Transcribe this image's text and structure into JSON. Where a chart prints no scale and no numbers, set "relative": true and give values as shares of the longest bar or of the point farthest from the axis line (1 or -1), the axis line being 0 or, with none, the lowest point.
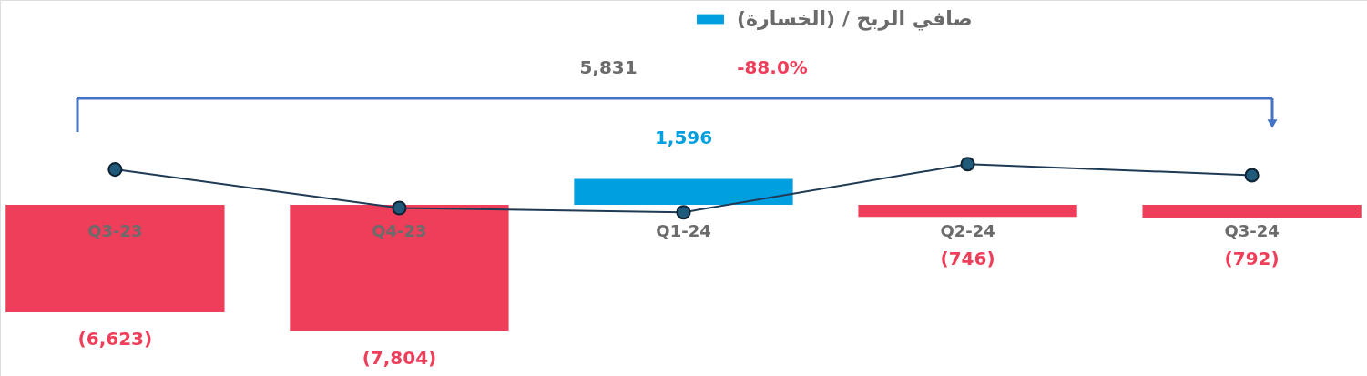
{
  "chart_data": [
    {
      "type": "bar",
      "categories": [
        "Q3-23",
        "Q4-23",
        "Q1-24",
        "Q2-24",
        "Q3-24"
      ],
      "series": [
        {
          "name": "صافي الربح / (الخسارة)",
          "color": "#009fe0",
          "values": [
            -6623,
            -7804,
            1596,
            -746,
            -792
          ],
          "colors": [
            "#ee3e5a",
            "#ee3e5a",
            "#009fe0",
            "#ee3e5a",
            "#ee3e5a"
          ],
          "value_labels": [
            "(6,623)",
            "(7,804)",
            "1,596",
            "(746)",
            "(792)"
          ]
        }
      ],
      "legend": "top",
      "annotations": [
        "5,831",
        "-88.0%"
      ]
    },
    {
      "type": "line",
      "relative": true,
      "categories": [
        null,
        null,
        null,
        null,
        null
      ],
      "series": [
        {
          "color": "#1f3a55",
          "values": [
            0.89,
            0.09,
            0,
            1,
            0.77
          ]
        }
      ],
      "marker": "circle",
      "line_style": "solid"
    }
  ]
}
